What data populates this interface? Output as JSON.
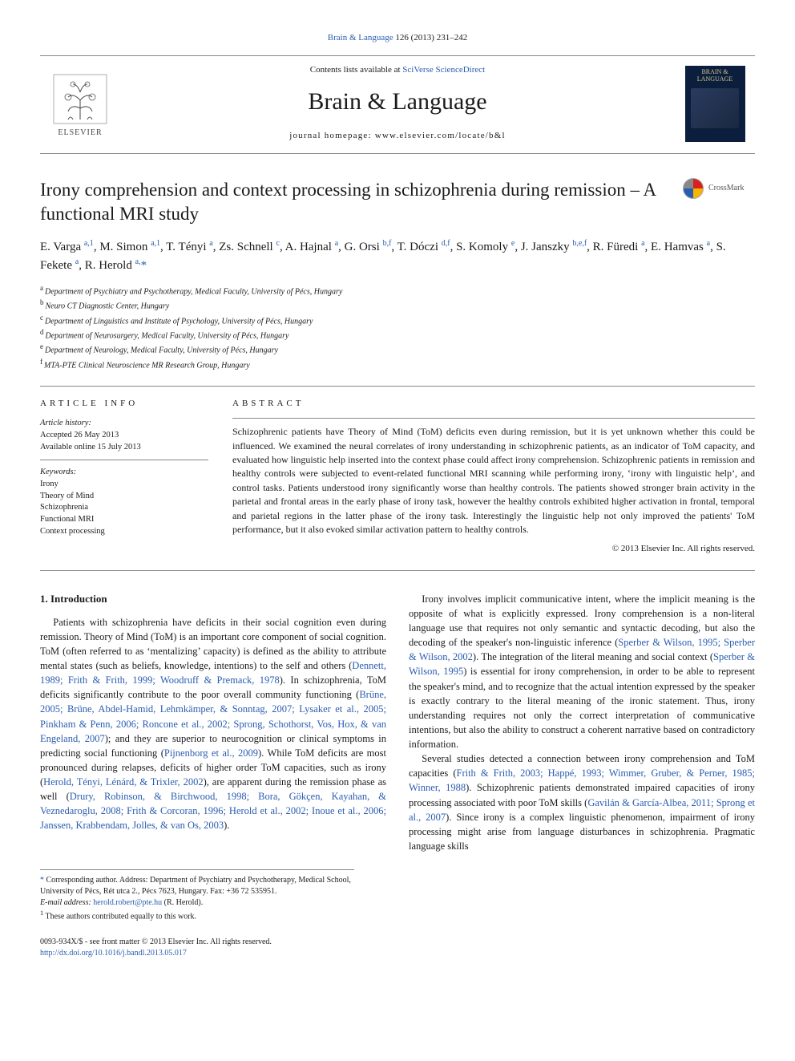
{
  "colors": {
    "link": "#2a5db0",
    "text": "#1a1a1a",
    "rule": "#888888",
    "background": "#ffffff",
    "cover_bg": "#0b1e3d",
    "cover_fg": "#d6c68a"
  },
  "typography": {
    "body_font": "Times New Roman / Georgia serif",
    "journal_name_size_pt": 30,
    "title_size_pt": 23,
    "authors_size_pt": 15,
    "body_size_pt": 12.5,
    "abstract_size_pt": 12,
    "small_size_pt": 10
  },
  "top_citation": {
    "journal_link": "Brain & Language",
    "issue": " 126 (2013) 231–242"
  },
  "masthead": {
    "contents_prefix": "Contents lists available at ",
    "contents_link": "SciVerse ScienceDirect",
    "journal_name": "Brain & Language",
    "homepage_prefix": "journal homepage: ",
    "homepage_url": "www.elsevier.com/locate/b&l",
    "elsevier_label": "ELSEVIER",
    "cover_label": "BRAIN & LANGUAGE"
  },
  "crossmark_label": "CrossMark",
  "title": "Irony comprehension and context processing in schizophrenia during remission – A functional MRI study",
  "authors_html": "E. Varga <sup>a,1</sup>, M. Simon <sup>a,1</sup>, T. Tényi <sup>a</sup>, Zs. Schnell <sup>c</sup>, A. Hajnal <sup>a</sup>, G. Orsi <sup>b,f</sup>, T. Dóczi <sup>d,f</sup>, S. Komoly <sup>e</sup>, J. Janszky <sup>b,e,f</sup>, R. Füredi <sup>a</sup>, E. Hamvas <sup>a</sup>, S. Fekete <sup>a</sup>, R. Herold <sup>a,</sup><span class='star'>*</span>",
  "affiliations": [
    {
      "key": "a",
      "text": "Department of Psychiatry and Psychotherapy, Medical Faculty, University of Pécs, Hungary"
    },
    {
      "key": "b",
      "text": "Neuro CT Diagnostic Center, Hungary"
    },
    {
      "key": "c",
      "text": "Department of Linguistics and Institute of Psychology, University of Pécs, Hungary"
    },
    {
      "key": "d",
      "text": "Department of Neurosurgery, Medical Faculty, University of Pécs, Hungary"
    },
    {
      "key": "e",
      "text": "Department of Neurology, Medical Faculty, University of Pécs, Hungary"
    },
    {
      "key": "f",
      "text": "MTA-PTE Clinical Neuroscience MR Research Group, Hungary"
    }
  ],
  "article_info": {
    "heading": "article info",
    "history_label": "Article history:",
    "accepted": "Accepted 26 May 2013",
    "online": "Available online 15 July 2013",
    "keywords_label": "Keywords:",
    "keywords": [
      "Irony",
      "Theory of Mind",
      "Schizophrenia",
      "Functional MRI",
      "Context processing"
    ]
  },
  "abstract": {
    "heading": "abstract",
    "text": "Schizophrenic patients have Theory of Mind (ToM) deficits even during remission, but it is yet unknown whether this could be influenced. We examined the neural correlates of irony understanding in schizophrenic patients, as an indicator of ToM capacity, and evaluated how linguistic help inserted into the context phase could affect irony comprehension. Schizophrenic patients in remission and healthy controls were subjected to event-related functional MRI scanning while performing irony, ‘irony with linguistic help’, and control tasks. Patients understood irony significantly worse than healthy controls. The patients showed stronger brain activity in the parietal and frontal areas in the early phase of irony task, however the healthy controls exhibited higher activation in frontal, temporal and parietal regions in the latter phase of the irony task. Interestingly the linguistic help not only improved the patients' ToM performance, but it also evoked similar activation pattern to healthy controls.",
    "copyright": "© 2013 Elsevier Inc. All rights reserved."
  },
  "body": {
    "section_heading": "1. Introduction",
    "p1_a": "Patients with schizophrenia have deficits in their social cognition even during remission. Theory of Mind (ToM) is an important core component of social cognition. ToM (often referred to as ‘mentalizing’ capacity) is defined as the ability to attribute mental states (such as beliefs, knowledge, intentions) to the self and others (",
    "p1_cite1": "Dennett, 1989; Frith & Frith, 1999; Woodruff & Premack, 1978",
    "p1_b": "). In schizophrenia, ToM deficits significantly contribute to the poor overall community functioning (",
    "p1_cite2": "Brüne, 2005; Brüne, Abdel-Hamid, Lehmkämper, & Sonntag, 2007; Lysaker et al., 2005; Pinkham & Penn, 2006; Roncone et al., 2002; Sprong, Schothorst, Vos, Hox, & van Engeland, 2007",
    "p1_c": "); and they are superior to neurocognition or clinical symptoms in predicting social functioning (",
    "p1_cite3": "Pijnenborg et al., 2009",
    "p1_d": "). While ToM deficits are most pronounced during relapses, deficits of higher order ToM capacities, such as irony (",
    "p1_cite4": "Herold, Tényi, Lénárd, & Trixler, 2002",
    "p1_e": "), are apparent during the remission phase as well (",
    "p1_cite5": "Drury, Robinson, & Birchwood, 1998; Bora, Gökçen, Kayahan, & Veznedaroglu, 2008; Frith & Corcoran, 1996; Herold et al., 2002; Inoue et al., 2006; Janssen, Krabbendam, Jolles, & van Os, 2003",
    "p1_f": ").",
    "p2_a": "Irony involves implicit communicative intent, where the implicit meaning is the opposite of what is explicitly expressed. Irony comprehension is a non-literal language use that requires not only semantic and syntactic decoding, but also the decoding of the speaker's non-linguistic inference (",
    "p2_cite1": "Sperber & Wilson, 1995; Sperber & Wilson, 2002",
    "p2_b": "). The integration of the literal meaning and social context (",
    "p2_cite2": "Sperber & Wilson, 1995",
    "p2_c": ") is essential for irony comprehension, in order to be able to represent the speaker's mind, and to recognize that the actual intention expressed by the speaker is exactly contrary to the literal meaning of the ironic statement. Thus, irony understanding requires not only the correct interpretation of communicative intentions, but also the ability to construct a coherent narrative based on contradictory information.",
    "p3_a": "Several studies detected a connection between irony comprehension and ToM capacities (",
    "p3_cite1": "Frith & Frith, 2003; Happé, 1993; Wimmer, Gruber, & Perner, 1985; Winner, 1988",
    "p3_b": "). Schizophrenic patients demonstrated impaired capacities of irony processing associated with poor ToM skills (",
    "p3_cite2": "Gavilán & García-Albea, 2011; Sprong et al., 2007",
    "p3_c": "). Since irony is a complex linguistic phenomenon, impairment of irony processing might arise from language disturbances in schizophrenia. Pragmatic language skills"
  },
  "footnotes": {
    "corr_star": "*",
    "corr_text": " Corresponding author. Address: Department of Psychiatry and Psychotherapy, Medical School, University of Pécs, Rét utca 2., Pécs 7623, Hungary. Fax: +36 72 535951.",
    "email_label": "E-mail address: ",
    "email": "herold.robert@pte.hu",
    "email_who": " (R. Herold).",
    "equal_sup": "1",
    "equal_text": " These authors contributed equally to this work."
  },
  "bottom": {
    "issn_line": "0093-934X/$ - see front matter © 2013 Elsevier Inc. All rights reserved.",
    "doi": "http://dx.doi.org/10.1016/j.bandl.2013.05.017"
  }
}
